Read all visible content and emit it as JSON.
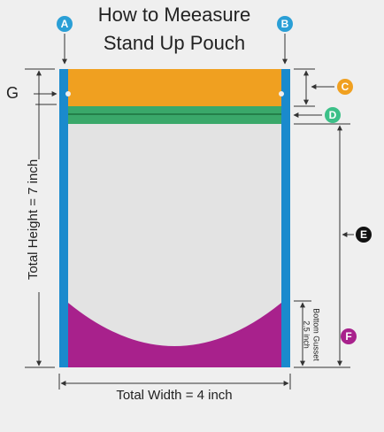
{
  "title": {
    "line1": "How to Meeasure",
    "line2": "Stand Up Pouch"
  },
  "markers": {
    "a": "A",
    "b": "B",
    "c": "C",
    "d": "D",
    "e": "E",
    "f": "F",
    "g": "G"
  },
  "dimensions": {
    "height": "Total Height = 7 inch",
    "width": "Total Width = 4 inch",
    "gusset_line1": "Bottom Gusset",
    "gusset_line2": "2.5 inch"
  }
}
